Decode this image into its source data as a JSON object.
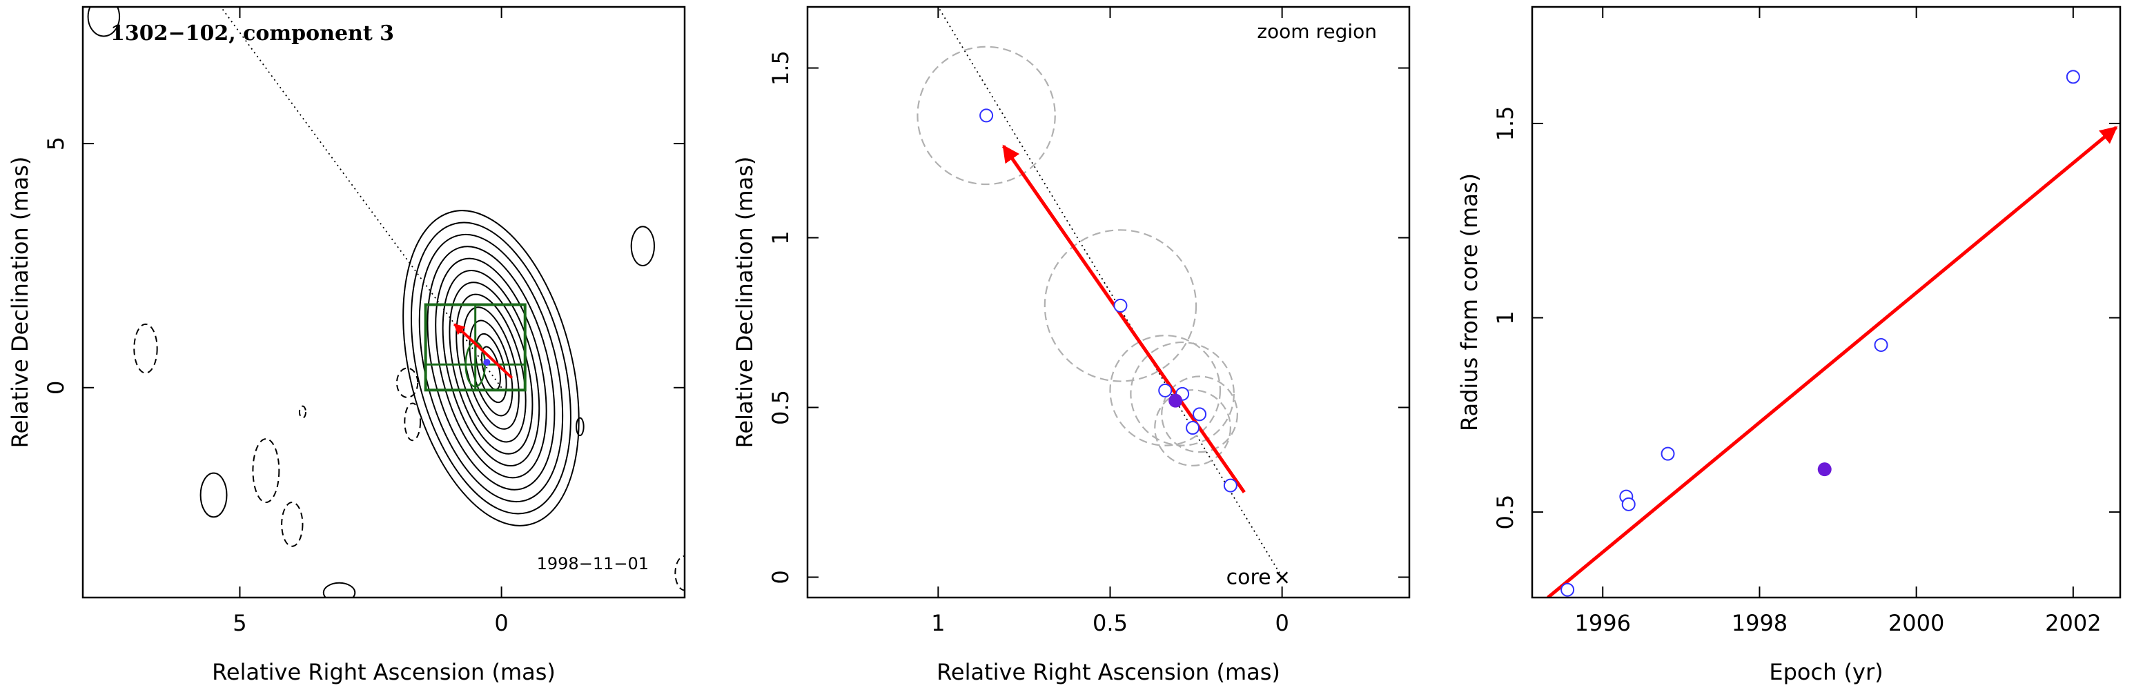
{
  "chart_data": [
    {
      "type": "contour",
      "title": "1302−102, component 3",
      "xlabel": "Relative Right Ascension (mas)",
      "ylabel": "Relative Declination (mas)",
      "xlim": [
        8,
        -3.5
      ],
      "ylim": [
        -4.3,
        7.8
      ],
      "xticks": [
        {
          "value": 5,
          "label": "5"
        },
        {
          "value": 0,
          "label": "0"
        }
      ],
      "yticks": [
        {
          "value": 0,
          "label": "0"
        },
        {
          "value": 5,
          "label": "5"
        }
      ],
      "annotation": "1998−11−01",
      "colors": {
        "contour": "#000000",
        "zoom_box": "#1a6b1a",
        "motion": "#ff0000",
        "marker": "#4a3aff"
      },
      "contours": {
        "center": [
          0.2,
          0.4
        ],
        "angle_deg": 14,
        "levels": [
          {
            "a": 1.55,
            "b": 3.3
          },
          {
            "a": 1.4,
            "b": 3.05
          },
          {
            "a": 1.25,
            "b": 2.8
          },
          {
            "a": 1.1,
            "b": 2.55
          },
          {
            "a": 0.95,
            "b": 2.3
          },
          {
            "a": 0.82,
            "b": 2.05
          },
          {
            "a": 0.7,
            "b": 1.8
          },
          {
            "a": 0.58,
            "b": 1.55
          },
          {
            "a": 0.46,
            "b": 1.28
          },
          {
            "a": 0.35,
            "b": 1.0
          },
          {
            "a": 0.25,
            "b": 0.72
          },
          {
            "a": 0.15,
            "b": 0.45
          }
        ],
        "extra_solid": [
          {
            "cx": -2.7,
            "cy": 2.9,
            "a": 0.22,
            "b": 0.4
          },
          {
            "cx": 5.5,
            "cy": -2.2,
            "a": 0.25,
            "b": 0.45
          },
          {
            "cx": -1.5,
            "cy": -0.8,
            "a": 0.07,
            "b": 0.18
          },
          {
            "cx": 3.1,
            "cy": -4.2,
            "a": 0.3,
            "b": 0.2
          },
          {
            "cx": 7.6,
            "cy": 7.6,
            "a": 0.3,
            "b": 0.4
          }
        ],
        "negative_dashed": [
          {
            "cx": 6.8,
            "cy": 0.8,
            "a": 0.22,
            "b": 0.5
          },
          {
            "cx": 4.5,
            "cy": -1.7,
            "a": 0.25,
            "b": 0.65
          },
          {
            "cx": 4.0,
            "cy": -2.8,
            "a": 0.2,
            "b": 0.45
          },
          {
            "cx": 1.8,
            "cy": 0.1,
            "a": 0.2,
            "b": 0.3
          },
          {
            "cx": 1.7,
            "cy": -0.7,
            "a": 0.15,
            "b": 0.38
          },
          {
            "cx": 3.8,
            "cy": -0.5,
            "a": 0.06,
            "b": 0.12
          },
          {
            "cx": -3.5,
            "cy": -3.8,
            "a": 0.18,
            "b": 0.35
          }
        ]
      },
      "zoom_box": {
        "x": [
          -0.45,
          1.45
        ],
        "y": [
          -0.05,
          1.7
        ]
      },
      "jet_line": {
        "from": [
          0,
          0
        ],
        "to": [
          5.5,
          8.0
        ]
      },
      "motion": {
        "from": [
          -0.2,
          0.2
        ],
        "to": [
          0.9,
          1.3
        ]
      },
      "component": {
        "x": 0.28,
        "y": 0.52
      }
    },
    {
      "type": "scatter",
      "xlabel": "Relative Right Ascension (mas)",
      "ylabel": "Relative Declination (mas)",
      "xlim": [
        1.38,
        -0.37
      ],
      "ylim": [
        -0.06,
        1.68
      ],
      "xticks": [
        {
          "value": 1,
          "label": "1"
        },
        {
          "value": 0.5,
          "label": "0.5"
        },
        {
          "value": 0,
          "label": "0"
        }
      ],
      "yticks": [
        {
          "value": 0,
          "label": "0"
        },
        {
          "value": 0.5,
          "label": "0.5"
        },
        {
          "value": 1,
          "label": "1"
        },
        {
          "value": 1.5,
          "label": "1.5"
        }
      ],
      "corner_label": "zoom region",
      "core_label": "core",
      "core_marker": "×",
      "points": [
        {
          "x": 0.86,
          "y": 1.36,
          "r": 0.2
        },
        {
          "x": 0.47,
          "y": 0.8,
          "r": 0.22
        },
        {
          "x": 0.34,
          "y": 0.55,
          "r": 0.16
        },
        {
          "x": 0.29,
          "y": 0.54,
          "r": 0.15
        },
        {
          "x": 0.24,
          "y": 0.48,
          "r": 0.11
        },
        {
          "x": 0.26,
          "y": 0.44,
          "r": 0.11
        },
        {
          "x": 0.15,
          "y": 0.27,
          "r": 0.0
        }
      ],
      "highlight": {
        "x": 0.31,
        "y": 0.52
      },
      "motion": {
        "from": [
          0.11,
          0.25
        ],
        "to": [
          0.81,
          1.27
        ]
      },
      "jet_line": {
        "from": [
          0,
          0
        ],
        "to": [
          1.0,
          1.68
        ]
      },
      "colors": {
        "marker": "#3030ff",
        "highlight": "#6a1ad8",
        "circle": "#b0b0b0",
        "motion": "#ff0000"
      }
    },
    {
      "type": "scatter",
      "xlabel": "Epoch (yr)",
      "ylabel": "Radius from core (mas)",
      "xlim": [
        1995.1,
        2002.6
      ],
      "ylim": [
        0.28,
        1.8
      ],
      "xticks": [
        {
          "value": 1996,
          "label": "1996"
        },
        {
          "value": 1998,
          "label": "1998"
        },
        {
          "value": 2000,
          "label": "2000"
        },
        {
          "value": 2002,
          "label": "2002"
        }
      ],
      "yticks": [
        {
          "value": 0.5,
          "label": "0.5"
        },
        {
          "value": 1,
          "label": "1"
        },
        {
          "value": 1.5,
          "label": "1.5"
        }
      ],
      "points": [
        {
          "x": 1995.55,
          "y": 0.3
        },
        {
          "x": 1996.3,
          "y": 0.54
        },
        {
          "x": 1996.33,
          "y": 0.52
        },
        {
          "x": 1996.83,
          "y": 0.65
        },
        {
          "x": 1999.55,
          "y": 0.93
        },
        {
          "x": 2002.0,
          "y": 1.62
        }
      ],
      "highlight": {
        "x": 1998.83,
        "y": 0.61
      },
      "fit_line": {
        "from": [
          1995.3,
          0.28
        ],
        "to": [
          2002.55,
          1.49
        ]
      },
      "colors": {
        "marker": "#3030ff",
        "highlight": "#6a1ad8",
        "fit": "#ff0000"
      }
    }
  ]
}
